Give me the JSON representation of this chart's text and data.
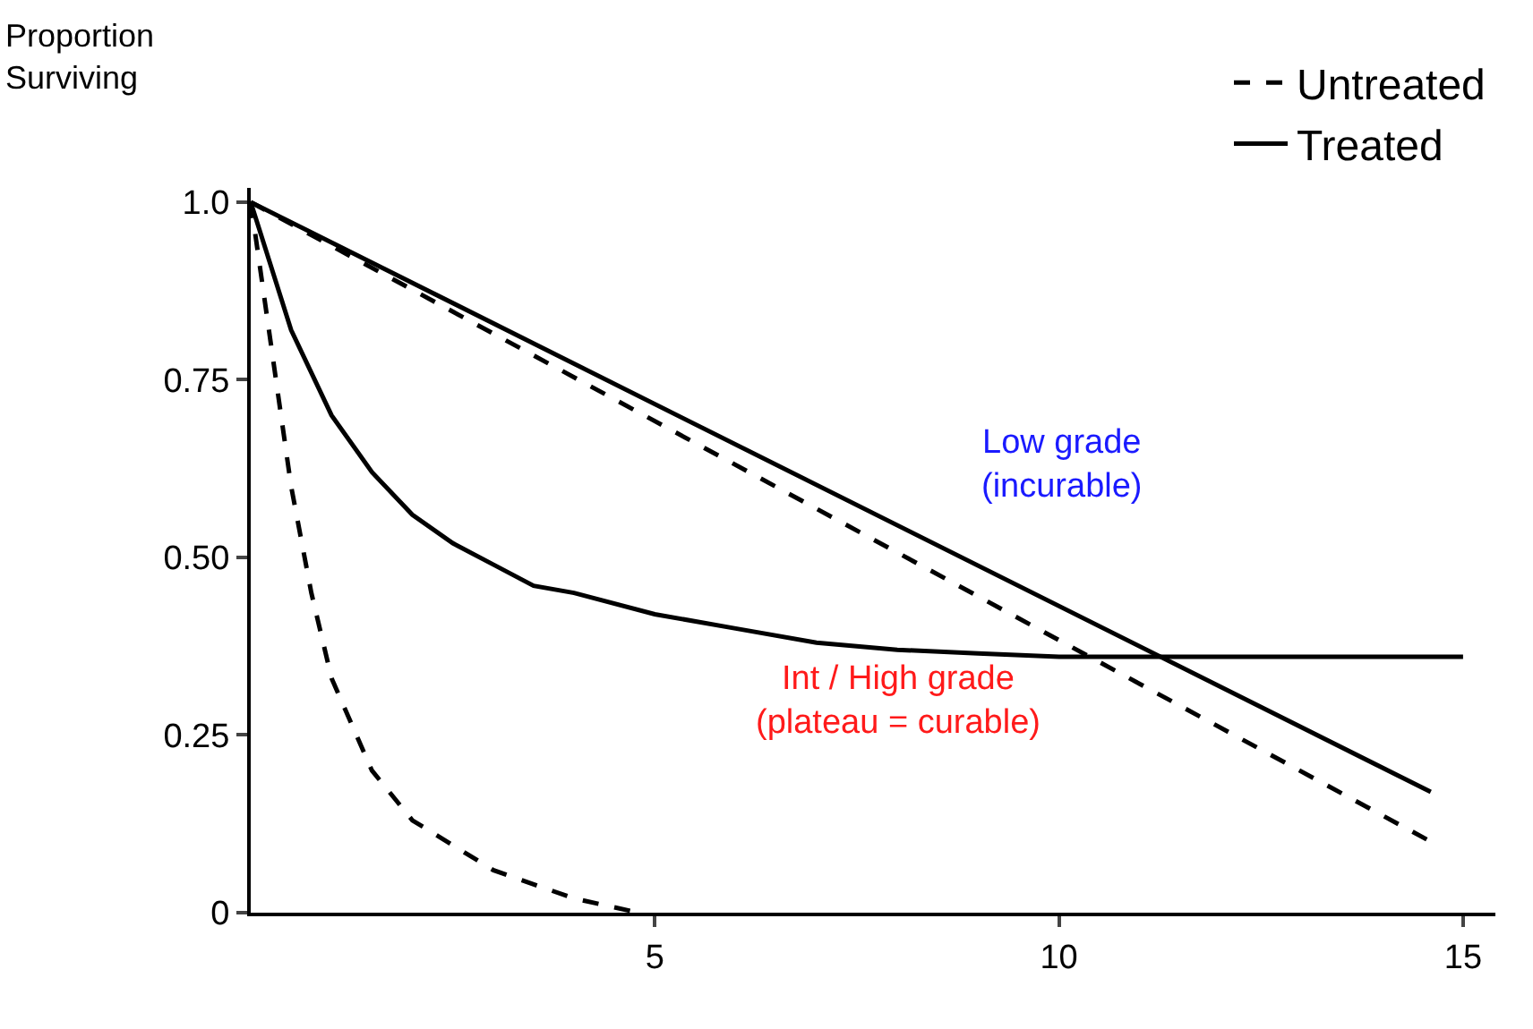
{
  "chart_data": {
    "type": "line",
    "ylabel": "Proportion\nSurviving",
    "xlim": [
      0,
      15.4
    ],
    "ylim": [
      0,
      1.02
    ],
    "xticks": [
      5,
      10,
      15
    ],
    "yticks": [
      0,
      0.25,
      {
        "value": 0.5,
        "label": "0.50"
      },
      0.75,
      {
        "value": 1,
        "label": "1.0"
      }
    ],
    "legend": "top right",
    "marker": "none",
    "series": [
      {
        "name": "Untreated",
        "color": "#000000",
        "line_style": "dashed",
        "x": [
          0,
          14.6
        ],
        "values": [
          1,
          0.1
        ]
      },
      {
        "name": "Treated",
        "color": "#000000",
        "line_style": "solid",
        "x": [
          0,
          14.6
        ],
        "values": [
          1,
          0.17
        ]
      },
      {
        "color": "#000000",
        "line_style": "dashed",
        "x": [
          0,
          0.25,
          0.5,
          0.75,
          1,
          1.5,
          2,
          3,
          4,
          4.8
        ],
        "values": [
          1,
          0.8,
          0.6,
          0.45,
          0.33,
          0.2,
          0.13,
          0.06,
          0.02,
          0
        ]
      },
      {
        "color": "#000000",
        "line_style": "solid",
        "x": [
          0,
          0.5,
          1,
          1.5,
          2,
          2.5,
          3,
          3.5,
          4,
          5,
          6,
          7,
          8,
          9,
          10,
          15
        ],
        "values": [
          1,
          0.82,
          0.7,
          0.62,
          0.56,
          0.52,
          0.49,
          0.46,
          0.45,
          0.42,
          0.4,
          0.38,
          0.37,
          0.365,
          0.36,
          0.36
        ]
      }
    ],
    "annotations": [
      "Low grade\n(incurable)",
      "Int / High grade\n(plateau = curable)"
    ]
  }
}
